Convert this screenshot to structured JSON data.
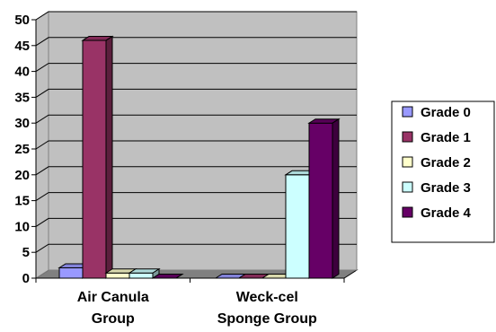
{
  "chart_data": {
    "type": "bar",
    "categories": [
      [
        "Air Canula",
        "Group"
      ],
      [
        "Weck-cel",
        "Sponge Group"
      ]
    ],
    "series": [
      {
        "name": "Grade 0",
        "values": [
          2,
          0
        ],
        "color": "#9999ff"
      },
      {
        "name": "Grade 1",
        "values": [
          46,
          0
        ],
        "color": "#993366"
      },
      {
        "name": "Grade 2",
        "values": [
          1,
          0
        ],
        "color": "#ffffcc"
      },
      {
        "name": "Grade 3",
        "values": [
          1,
          20
        ],
        "color": "#ccffff"
      },
      {
        "name": "Grade 4",
        "values": [
          0,
          30
        ],
        "color": "#660066"
      }
    ],
    "title": "",
    "xlabel": "",
    "ylabel": "",
    "ylim": [
      0,
      50
    ],
    "yticks": [
      0,
      5,
      10,
      15,
      20,
      25,
      30,
      35,
      40,
      45,
      50
    ],
    "grid": true,
    "legend": "right",
    "style": "3d"
  }
}
